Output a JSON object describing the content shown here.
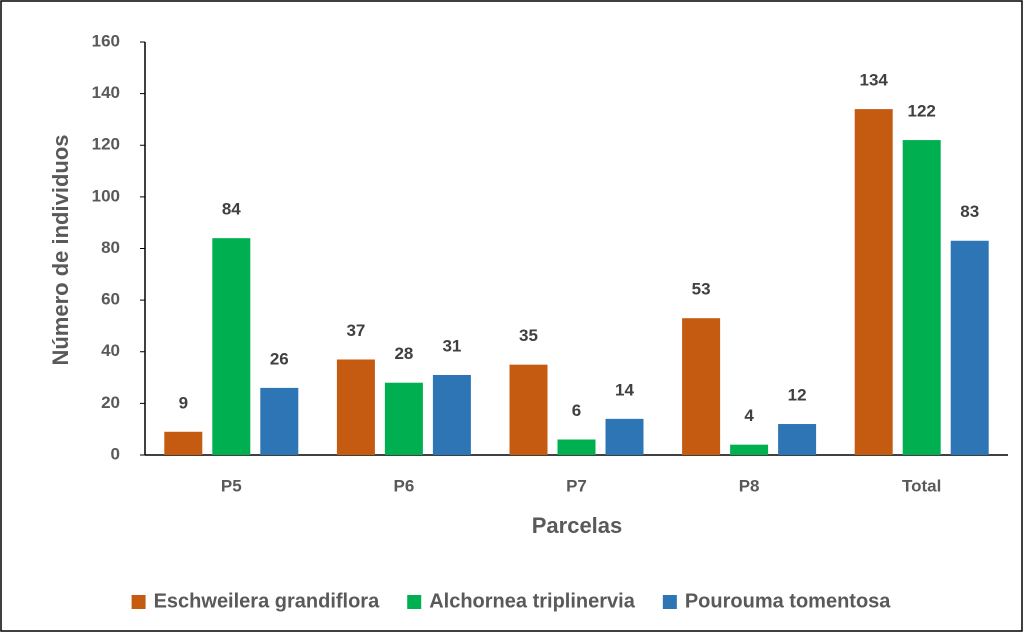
{
  "chart_data": {
    "type": "bar",
    "x_label": "Parcelas",
    "y_label": "Número de individuos",
    "categories": [
      "P5",
      "P6",
      "P7",
      "P8",
      "Total"
    ],
    "series": [
      {
        "name": "Eschweilera grandiflora",
        "color": "#c55a11",
        "values": [
          9,
          37,
          35,
          53,
          134
        ]
      },
      {
        "name": "Alchornea triplinervia",
        "color": "#00b050",
        "values": [
          84,
          28,
          6,
          4,
          122
        ]
      },
      {
        "name": "Pourouma tomentosa",
        "color": "#2e75b6",
        "values": [
          26,
          31,
          14,
          12,
          83
        ]
      }
    ],
    "ylim": [
      0,
      160
    ],
    "yticks": [
      0,
      20,
      40,
      60,
      80,
      100,
      120,
      140,
      160
    ],
    "grid": false,
    "legend": "bottom"
  }
}
